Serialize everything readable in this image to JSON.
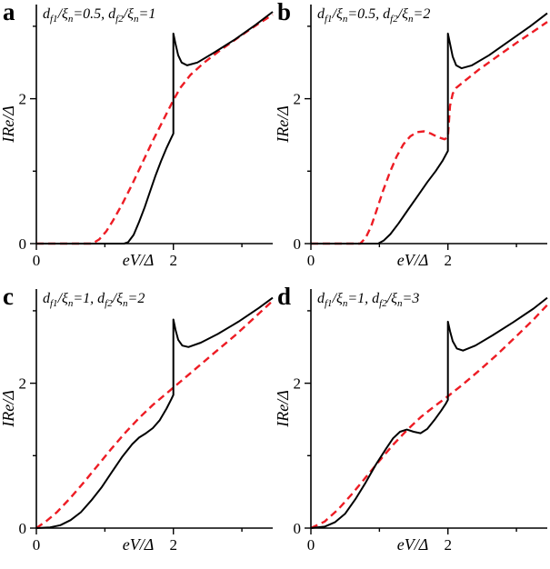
{
  "figure": {
    "background": "#ffffff",
    "axis_color": "#000000",
    "solid_color": "#000000",
    "dashed_color": "#ed1c24"
  },
  "chart_data": [
    {
      "type": "line",
      "panel_label": "a",
      "title": "d_{f1}/ξ_{n}=0.5, d_{f2}/ξ_{n}=1",
      "xlabel": "eV/Δ",
      "ylabel": "IRe/Δ",
      "xlim": [
        0,
        3.45
      ],
      "ylim": [
        0,
        3.3
      ],
      "xticks": [
        {
          "v": 0,
          "label": "0"
        },
        {
          "v": 1
        },
        {
          "v": 2,
          "label": "2"
        },
        {
          "v": 3
        }
      ],
      "yticks": [
        {
          "v": 0,
          "label": "0"
        },
        {
          "v": 1
        },
        {
          "v": 2,
          "label": "2"
        },
        {
          "v": 3
        }
      ],
      "grid": false,
      "legend": "none",
      "series": [
        {
          "name": "red-dashed",
          "style": "dashed",
          "color": "#ed1c24",
          "points": [
            [
              0,
              0
            ],
            [
              0.82,
              0
            ],
            [
              0.92,
              0.06
            ],
            [
              1.02,
              0.17
            ],
            [
              1.12,
              0.32
            ],
            [
              1.25,
              0.54
            ],
            [
              1.4,
              0.82
            ],
            [
              1.55,
              1.12
            ],
            [
              1.7,
              1.42
            ],
            [
              1.85,
              1.7
            ],
            [
              2.0,
              1.98
            ],
            [
              2.1,
              2.15
            ],
            [
              2.25,
              2.33
            ],
            [
              2.45,
              2.5
            ],
            [
              2.7,
              2.68
            ],
            [
              3.0,
              2.88
            ],
            [
              3.25,
              3.04
            ],
            [
              3.45,
              3.16
            ]
          ]
        },
        {
          "name": "black-solid",
          "style": "solid",
          "color": "#000000",
          "points": [
            [
              0,
              0
            ],
            [
              1.28,
              0
            ],
            [
              1.34,
              0.02
            ],
            [
              1.42,
              0.12
            ],
            [
              1.5,
              0.3
            ],
            [
              1.58,
              0.5
            ],
            [
              1.66,
              0.72
            ],
            [
              1.74,
              0.94
            ],
            [
              1.82,
              1.14
            ],
            [
              1.9,
              1.32
            ],
            [
              1.96,
              1.44
            ],
            [
              2.0,
              1.52
            ],
            [
              2.0,
              2.9
            ],
            [
              2.03,
              2.76
            ],
            [
              2.07,
              2.6
            ],
            [
              2.12,
              2.5
            ],
            [
              2.2,
              2.46
            ],
            [
              2.35,
              2.5
            ],
            [
              2.6,
              2.64
            ],
            [
              2.9,
              2.82
            ],
            [
              3.2,
              3.02
            ],
            [
              3.45,
              3.2
            ]
          ]
        }
      ]
    },
    {
      "type": "line",
      "panel_label": "b",
      "title": "d_{f1}/ξ_{n}=0.5, d_{f2}/ξ_{n}=2",
      "xlabel": "eV/Δ",
      "ylabel": "IRe/Δ",
      "xlim": [
        0,
        3.45
      ],
      "ylim": [
        0,
        3.3
      ],
      "xticks": [
        {
          "v": 0,
          "label": "0"
        },
        {
          "v": 1
        },
        {
          "v": 2,
          "label": "2"
        },
        {
          "v": 3
        }
      ],
      "yticks": [
        {
          "v": 0,
          "label": "0"
        },
        {
          "v": 1
        },
        {
          "v": 2,
          "label": "2"
        },
        {
          "v": 3
        }
      ],
      "grid": false,
      "legend": "none",
      "series": [
        {
          "name": "red-dashed",
          "style": "dashed",
          "color": "#ed1c24",
          "points": [
            [
              0,
              0
            ],
            [
              0.72,
              0
            ],
            [
              0.8,
              0.08
            ],
            [
              0.88,
              0.24
            ],
            [
              0.96,
              0.46
            ],
            [
              1.05,
              0.72
            ],
            [
              1.15,
              0.98
            ],
            [
              1.25,
              1.2
            ],
            [
              1.35,
              1.37
            ],
            [
              1.45,
              1.48
            ],
            [
              1.55,
              1.54
            ],
            [
              1.65,
              1.55
            ],
            [
              1.75,
              1.52
            ],
            [
              1.85,
              1.47
            ],
            [
              1.95,
              1.44
            ],
            [
              2.0,
              1.47
            ],
            [
              2.03,
              1.9
            ],
            [
              2.07,
              2.07
            ],
            [
              2.12,
              2.15
            ],
            [
              2.25,
              2.25
            ],
            [
              2.45,
              2.4
            ],
            [
              2.7,
              2.57
            ],
            [
              3.0,
              2.77
            ],
            [
              3.25,
              2.93
            ],
            [
              3.45,
              3.06
            ]
          ]
        },
        {
          "name": "black-solid",
          "style": "solid",
          "color": "#000000",
          "points": [
            [
              0,
              0
            ],
            [
              0.98,
              0
            ],
            [
              1.06,
              0.04
            ],
            [
              1.16,
              0.13
            ],
            [
              1.28,
              0.28
            ],
            [
              1.42,
              0.47
            ],
            [
              1.56,
              0.66
            ],
            [
              1.7,
              0.85
            ],
            [
              1.82,
              1.0
            ],
            [
              1.92,
              1.14
            ],
            [
              2.0,
              1.28
            ],
            [
              2.0,
              2.9
            ],
            [
              2.03,
              2.76
            ],
            [
              2.07,
              2.58
            ],
            [
              2.12,
              2.46
            ],
            [
              2.2,
              2.42
            ],
            [
              2.35,
              2.46
            ],
            [
              2.6,
              2.6
            ],
            [
              2.9,
              2.8
            ],
            [
              3.2,
              3.0
            ],
            [
              3.45,
              3.18
            ]
          ]
        }
      ]
    },
    {
      "type": "line",
      "panel_label": "c",
      "title": "d_{f1}/ξ_{n}=1, d_{f2}/ξ_{n}=2",
      "xlabel": "eV/Δ",
      "ylabel": "IRe/Δ",
      "xlim": [
        0,
        3.45
      ],
      "ylim": [
        0,
        3.3
      ],
      "xticks": [
        {
          "v": 0,
          "label": "0"
        },
        {
          "v": 1
        },
        {
          "v": 2,
          "label": "2"
        },
        {
          "v": 3
        }
      ],
      "yticks": [
        {
          "v": 0,
          "label": "0"
        },
        {
          "v": 1
        },
        {
          "v": 2,
          "label": "2"
        },
        {
          "v": 3
        }
      ],
      "grid": false,
      "legend": "none",
      "series": [
        {
          "name": "red-dashed",
          "style": "dashed",
          "color": "#ed1c24",
          "points": [
            [
              0,
              0
            ],
            [
              0.15,
              0.1
            ],
            [
              0.3,
              0.22
            ],
            [
              0.5,
              0.42
            ],
            [
              0.7,
              0.64
            ],
            [
              0.9,
              0.87
            ],
            [
              1.1,
              1.1
            ],
            [
              1.3,
              1.32
            ],
            [
              1.5,
              1.52
            ],
            [
              1.7,
              1.7
            ],
            [
              1.9,
              1.86
            ],
            [
              2.1,
              2.02
            ],
            [
              2.35,
              2.22
            ],
            [
              2.6,
              2.42
            ],
            [
              2.9,
              2.66
            ],
            [
              3.2,
              2.92
            ],
            [
              3.45,
              3.14
            ]
          ]
        },
        {
          "name": "black-solid",
          "style": "solid",
          "color": "#000000",
          "points": [
            [
              0,
              0
            ],
            [
              0.2,
              0.01
            ],
            [
              0.35,
              0.04
            ],
            [
              0.5,
              0.11
            ],
            [
              0.65,
              0.22
            ],
            [
              0.8,
              0.38
            ],
            [
              0.95,
              0.56
            ],
            [
              1.1,
              0.77
            ],
            [
              1.25,
              0.98
            ],
            [
              1.4,
              1.16
            ],
            [
              1.5,
              1.25
            ],
            [
              1.6,
              1.31
            ],
            [
              1.7,
              1.38
            ],
            [
              1.8,
              1.49
            ],
            [
              1.9,
              1.65
            ],
            [
              1.97,
              1.78
            ],
            [
              2.0,
              1.84
            ],
            [
              2.0,
              2.88
            ],
            [
              2.03,
              2.74
            ],
            [
              2.07,
              2.6
            ],
            [
              2.13,
              2.52
            ],
            [
              2.22,
              2.5
            ],
            [
              2.4,
              2.56
            ],
            [
              2.65,
              2.68
            ],
            [
              2.95,
              2.85
            ],
            [
              3.25,
              3.04
            ],
            [
              3.45,
              3.18
            ]
          ]
        }
      ]
    },
    {
      "type": "line",
      "panel_label": "d",
      "title": "d_{f1}/ξ_{n}=1, d_{f2}/ξ_{n}=3",
      "xlabel": "eV/Δ",
      "ylabel": "IRe/Δ",
      "xlim": [
        0,
        3.45
      ],
      "ylim": [
        0,
        3.3
      ],
      "xticks": [
        {
          "v": 0,
          "label": "0"
        },
        {
          "v": 1
        },
        {
          "v": 2,
          "label": "2"
        },
        {
          "v": 3
        }
      ],
      "yticks": [
        {
          "v": 0,
          "label": "0"
        },
        {
          "v": 1
        },
        {
          "v": 2,
          "label": "2"
        },
        {
          "v": 3
        }
      ],
      "grid": false,
      "legend": "none",
      "series": [
        {
          "name": "red-dashed",
          "style": "dashed",
          "color": "#ed1c24",
          "points": [
            [
              0,
              0
            ],
            [
              0.2,
              0.09
            ],
            [
              0.4,
              0.26
            ],
            [
              0.6,
              0.47
            ],
            [
              0.8,
              0.7
            ],
            [
              1.0,
              0.93
            ],
            [
              1.2,
              1.15
            ],
            [
              1.4,
              1.35
            ],
            [
              1.6,
              1.53
            ],
            [
              1.8,
              1.68
            ],
            [
              2.0,
              1.82
            ],
            [
              2.2,
              1.97
            ],
            [
              2.45,
              2.17
            ],
            [
              2.7,
              2.38
            ],
            [
              3.0,
              2.65
            ],
            [
              3.25,
              2.88
            ],
            [
              3.45,
              3.08
            ]
          ]
        },
        {
          "name": "black-solid",
          "style": "solid",
          "color": "#000000",
          "points": [
            [
              0,
              0
            ],
            [
              0.2,
              0.02
            ],
            [
              0.35,
              0.08
            ],
            [
              0.5,
              0.2
            ],
            [
              0.65,
              0.4
            ],
            [
              0.8,
              0.63
            ],
            [
              0.95,
              0.88
            ],
            [
              1.1,
              1.1
            ],
            [
              1.2,
              1.24
            ],
            [
              1.3,
              1.33
            ],
            [
              1.4,
              1.36
            ],
            [
              1.5,
              1.33
            ],
            [
              1.6,
              1.31
            ],
            [
              1.7,
              1.37
            ],
            [
              1.8,
              1.49
            ],
            [
              1.9,
              1.62
            ],
            [
              1.97,
              1.72
            ],
            [
              2.0,
              1.77
            ],
            [
              2.0,
              2.85
            ],
            [
              2.03,
              2.72
            ],
            [
              2.07,
              2.58
            ],
            [
              2.13,
              2.48
            ],
            [
              2.22,
              2.45
            ],
            [
              2.4,
              2.52
            ],
            [
              2.65,
              2.66
            ],
            [
              2.95,
              2.84
            ],
            [
              3.25,
              3.03
            ],
            [
              3.45,
              3.18
            ]
          ]
        }
      ]
    }
  ]
}
